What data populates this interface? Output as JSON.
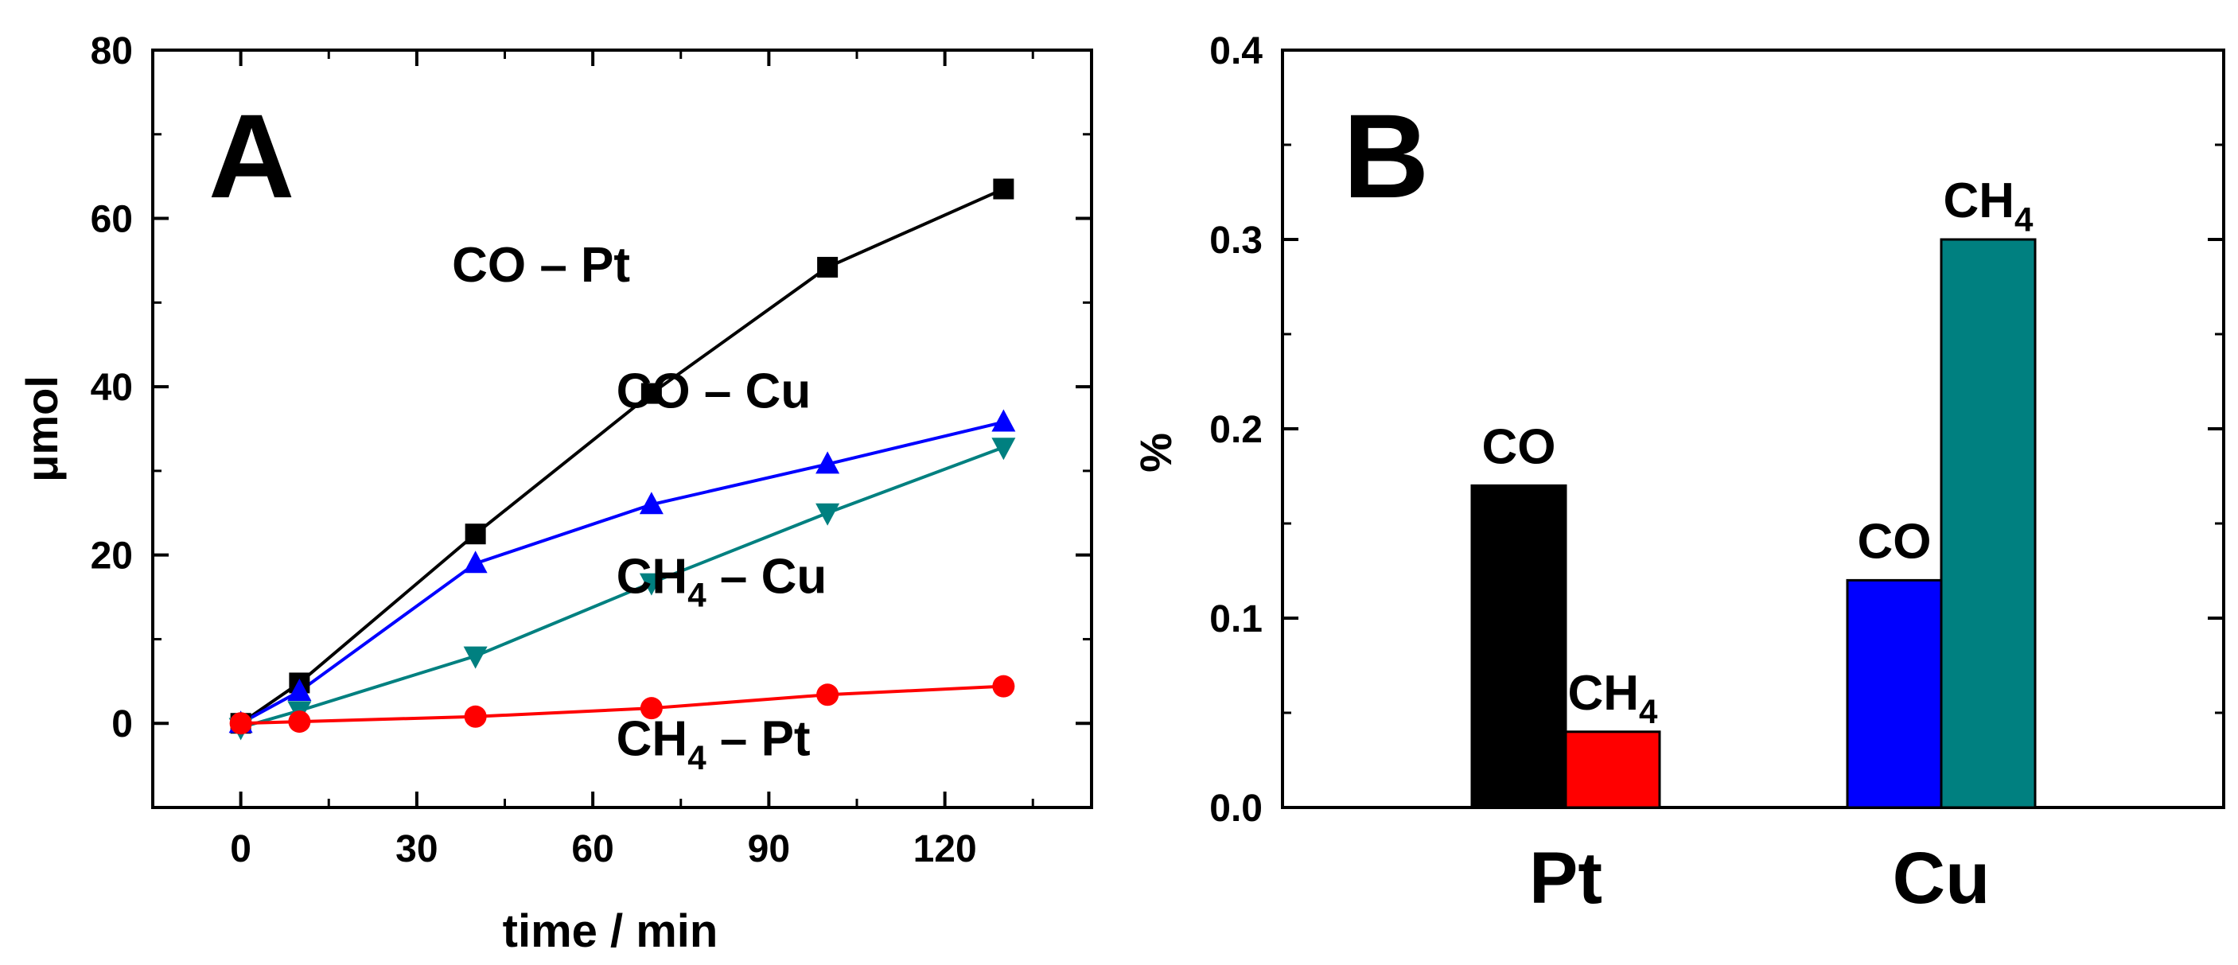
{
  "chart_data": [
    {
      "panel": "A",
      "type": "line",
      "panel_label": "A",
      "xlabel": "time / min",
      "ylabel": "μmol",
      "xlim": [
        -15,
        145
      ],
      "ylim": [
        -10,
        80
      ],
      "xticks": [
        0,
        30,
        60,
        90,
        120
      ],
      "yticks": [
        0,
        20,
        40,
        60,
        80
      ],
      "grid": false,
      "x": [
        0,
        10,
        40,
        70,
        100,
        130
      ],
      "series": [
        {
          "name": "CO – Pt",
          "label_main": "CO – Pt",
          "label_sub": "",
          "label_tail": "",
          "color": "#000000",
          "marker": "square",
          "values": [
            0,
            4.8,
            22.5,
            39.2,
            54.2,
            63.5
          ]
        },
        {
          "name": "CO – Cu",
          "label_main": "CO – Cu",
          "label_sub": "",
          "label_tail": "",
          "color": "#0000ff",
          "marker": "triangle-up",
          "values": [
            0,
            3.8,
            19.0,
            26.0,
            30.8,
            35.8
          ]
        },
        {
          "name": "CH4 – Cu",
          "label_main": "CH",
          "label_sub": "4",
          "label_tail": " – Cu",
          "color": "#008080",
          "marker": "triangle-down",
          "values": [
            -0.5,
            1.5,
            8.0,
            16.7,
            25.0,
            32.8
          ]
        },
        {
          "name": "CH4 – Pt",
          "label_main": "CH",
          "label_sub": "4",
          "label_tail": " – Pt",
          "color": "#ff0000",
          "marker": "circle",
          "values": [
            0,
            0.2,
            0.8,
            1.8,
            3.4,
            4.4
          ]
        }
      ]
    },
    {
      "panel": "B",
      "type": "bar",
      "panel_label": "B",
      "xlabel": "",
      "ylabel": "%",
      "ylim": [
        0,
        0.4
      ],
      "yticks": [
        0.0,
        0.1,
        0.2,
        0.3,
        0.4
      ],
      "ytick_labels": [
        "0.0",
        "0.1",
        "0.2",
        "0.3",
        "0.4"
      ],
      "grid": false,
      "categories": [
        "Pt",
        "Cu"
      ],
      "series": [
        {
          "name": "CO",
          "label_main": "CO",
          "label_sub": "",
          "colors": [
            "#000000",
            "#0000ff"
          ],
          "values": [
            0.17,
            0.12
          ]
        },
        {
          "name": "CH4",
          "label_main": "CH",
          "label_sub": "4",
          "colors": [
            "#ff0000",
            "#008080"
          ],
          "values": [
            0.04,
            0.3
          ]
        }
      ]
    }
  ]
}
